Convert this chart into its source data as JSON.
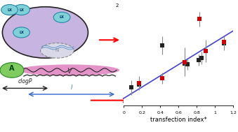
{
  "scatter_black_x": [
    0.08,
    0.17,
    0.42,
    0.67,
    0.7,
    0.82,
    0.85,
    1.1
  ],
  "scatter_black_y": [
    0.4,
    0.43,
    0.86,
    0.66,
    0.65,
    0.7,
    0.72,
    0.88
  ],
  "scatter_black_yerr": [
    0.08,
    0.06,
    0.1,
    0.05,
    0.06,
    0.06,
    0.07,
    0.07
  ],
  "scatter_red_x": [
    0.17,
    0.42,
    0.67,
    0.83,
    0.9,
    1.1
  ],
  "scatter_red_y": [
    0.45,
    0.5,
    0.68,
    1.15,
    0.8,
    0.9
  ],
  "scatter_red_yerr": [
    0.07,
    0.06,
    0.16,
    0.08,
    0.12,
    0.06
  ],
  "fit_x": [
    0.0,
    1.2
  ],
  "fit_y": [
    0.28,
    1.02
  ],
  "fit_color": "#4444cc",
  "black_color": "#222222",
  "red_color": "#cc0000",
  "marker_size": 4,
  "xlabel": "transfection index*",
  "xlim": [
    0.0,
    1.2
  ],
  "ylim": [
    0.2,
    1.3
  ],
  "ytick_label": "2",
  "ytick_pos": 1.3,
  "background_color": "#ffffff",
  "cell_fill": "#c8b4e0",
  "cell_edge": "#222222",
  "membrane_fill": "#e080c0",
  "molecule_fill": "#80d0d8",
  "green_circle_fill": "#80cc60"
}
